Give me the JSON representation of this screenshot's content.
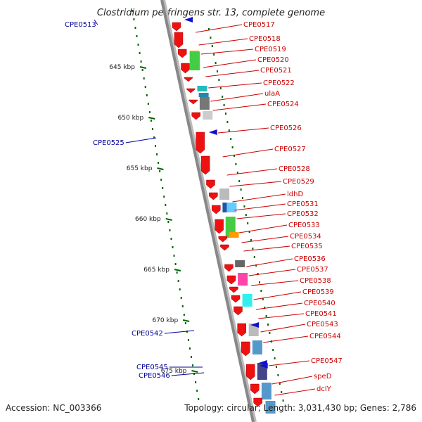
{
  "title": "Clostridium perfringens str. 13, complete genome",
  "footer": {
    "accession": "Accession: NC_003366",
    "summary": "Topology: circular; Length: 3,031,430 bp; Genes: 2,786"
  },
  "colors": {
    "forward_label": "#cc0000",
    "reverse_label": "#000099",
    "gene_forward": "#ee1111",
    "gene_reverse": "#1111cc",
    "backbone": "#888888",
    "ruler": "#006600"
  },
  "ruler_ticks": [
    {
      "label": "645 kbp",
      "kbp": 645
    },
    {
      "label": "650 kbp",
      "kbp": 650
    },
    {
      "label": "655 kbp",
      "kbp": 655
    },
    {
      "label": "660 kbp",
      "kbp": 660
    },
    {
      "label": "665 kbp",
      "kbp": 665
    },
    {
      "label": "670 kbp",
      "kbp": 670
    },
    {
      "label": "675 kbp",
      "kbp": 675
    }
  ],
  "genes_forward": [
    "CPE0517",
    "CPE0518",
    "CPE0519",
    "CPE0520",
    "CPE0521",
    "CPE0522",
    "ulaA",
    "CPE0524",
    "CPE0526",
    "CPE0527",
    "CPE0528",
    "CPE0529",
    "ldhD",
    "CPE0531",
    "CPE0532",
    "CPE0533",
    "CPE0534",
    "CPE0535",
    "CPE0536",
    "CPE0537",
    "CPE0538",
    "CPE0539",
    "CPE0540",
    "CPE0541",
    "CPE0543",
    "CPE0544",
    "CPE0547",
    "speD",
    "dclY"
  ],
  "genes_reverse": [
    "CPE0513",
    "CPE0525",
    "CPE0542",
    "CPE0545",
    "CPE0546"
  ]
}
